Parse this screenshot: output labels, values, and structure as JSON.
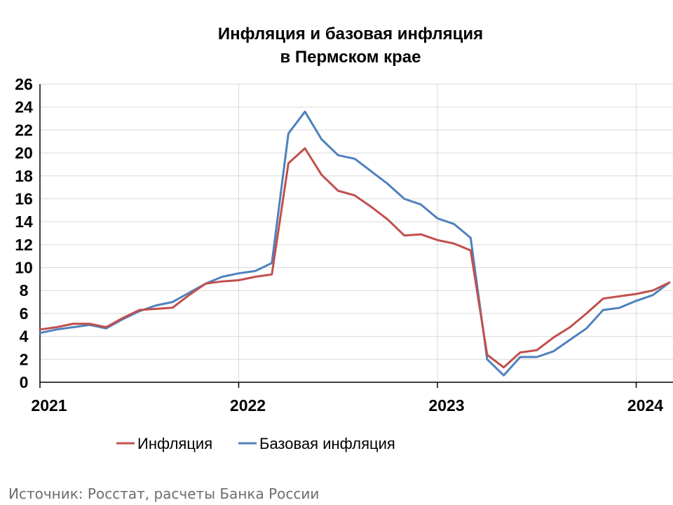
{
  "chart_data": {
    "type": "line",
    "title": [
      "Инфляция и базовая инфляция",
      "в Пермском крае"
    ],
    "xlabel": "",
    "ylabel": "",
    "x_start": "2021-01",
    "x_step": "month",
    "x_ticks": [
      "2021",
      "2022",
      "2023",
      "2024"
    ],
    "ylim": [
      0,
      26
    ],
    "y_ticks": [
      0,
      2,
      4,
      6,
      8,
      10,
      12,
      14,
      16,
      18,
      20,
      22,
      24,
      26
    ],
    "grid": true,
    "legend_position": "bottom",
    "colors": {
      "inflation": "#c0504d",
      "core": "#4f81bd",
      "grid": "#d9d9d9",
      "axis": "#000000"
    },
    "series": [
      {
        "name": "Инфляция",
        "color": "#c0504d",
        "values": [
          4.6,
          4.8,
          5.1,
          5.1,
          4.8,
          5.6,
          6.3,
          6.4,
          6.5,
          7.6,
          8.6,
          8.8,
          8.9,
          9.2,
          9.4,
          19.1,
          20.4,
          18.1,
          16.7,
          16.3,
          15.3,
          14.2,
          12.8,
          12.9,
          12.4,
          12.1,
          11.5,
          2.4,
          1.3,
          2.6,
          2.8,
          3.9,
          4.8,
          6.0,
          7.3,
          7.5,
          7.7,
          8.0,
          8.7
        ]
      },
      {
        "name": "Базовая инфляция",
        "color": "#4f81bd",
        "values": [
          4.3,
          4.6,
          4.8,
          5.0,
          4.7,
          5.5,
          6.2,
          6.7,
          7.0,
          7.8,
          8.6,
          9.2,
          9.5,
          9.7,
          10.4,
          21.7,
          23.6,
          21.2,
          19.8,
          19.5,
          18.4,
          17.3,
          16.0,
          15.5,
          14.3,
          13.8,
          12.6,
          2.0,
          0.6,
          2.2,
          2.2,
          2.7,
          3.7,
          4.7,
          6.3,
          6.5,
          7.1,
          7.6,
          8.7
        ]
      }
    ]
  },
  "source_text": "Источник: Росстат, расчеты Банка России"
}
